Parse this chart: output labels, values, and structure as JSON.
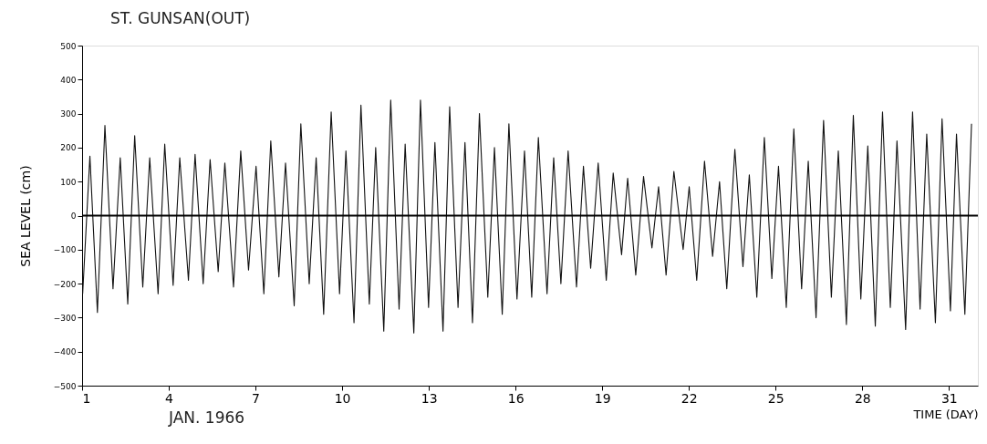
{
  "chart_data": {
    "type": "line",
    "title": "ST. GUNSAN(OUT)",
    "xlabel": "TIME (DAY)",
    "ylabel": "SEA LEVEL (cm)",
    "annotations": [
      "JAN. 1966"
    ],
    "xlim": [
      1,
      32
    ],
    "xticks": [
      1,
      4,
      7,
      10,
      13,
      16,
      19,
      22,
      25,
      28,
      31
    ],
    "ylim": [
      -500,
      500
    ],
    "yticks": [
      -500,
      -400,
      -300,
      -200,
      -100,
      0,
      100,
      200,
      300,
      400,
      500
    ],
    "grid": false,
    "line_style": "solid",
    "marker": "none",
    "ref_lines": [
      {
        "axis": "y",
        "value": 0,
        "color": "#000000"
      }
    ],
    "series": [
      {
        "color": "#111111",
        "x": [
          1.02,
          1.27,
          1.53,
          1.79,
          2.07,
          2.32,
          2.58,
          2.82,
          3.1,
          3.34,
          3.63,
          3.86,
          4.15,
          4.38,
          4.68,
          4.91,
          5.19,
          5.43,
          5.71,
          5.94,
          6.24,
          6.49,
          6.76,
          7.02,
          7.29,
          7.53,
          7.81,
          8.04,
          8.34,
          8.57,
          8.86,
          9.1,
          9.36,
          9.62,
          9.91,
          10.13,
          10.41,
          10.65,
          10.94,
          11.16,
          11.44,
          11.68,
          11.97,
          12.18,
          12.48,
          12.71,
          12.99,
          13.21,
          13.49,
          13.72,
          14.01,
          14.25,
          14.51,
          14.75,
          15.04,
          15.27,
          15.54,
          15.77,
          16.05,
          16.31,
          16.56,
          16.79,
          17.09,
          17.32,
          17.57,
          17.82,
          18.11,
          18.35,
          18.6,
          18.86,
          19.14,
          19.38,
          19.67,
          19.88,
          20.16,
          20.43,
          20.72,
          20.95,
          21.21,
          21.48,
          21.8,
          22.01,
          22.27,
          22.54,
          22.82,
          23.06,
          23.31,
          23.59,
          23.87,
          24.09,
          24.35,
          24.61,
          24.87,
          25.1,
          25.37,
          25.63,
          25.9,
          26.13,
          26.4,
          26.66,
          26.93,
          27.17,
          27.45,
          27.69,
          27.95,
          28.19,
          28.45,
          28.7,
          28.97,
          29.2,
          29.5,
          29.74,
          30.0,
          30.23,
          30.53,
          30.76,
          31.05,
          31.26,
          31.55,
          31.78
        ],
        "values": [
          -230,
          175,
          -285,
          265,
          -215,
          170,
          -260,
          235,
          -210,
          170,
          -230,
          210,
          -205,
          170,
          -190,
          180,
          -200,
          165,
          -165,
          155,
          -210,
          190,
          -160,
          145,
          -230,
          220,
          -180,
          155,
          -265,
          270,
          -200,
          170,
          -290,
          305,
          -230,
          190,
          -315,
          325,
          -260,
          200,
          -340,
          340,
          -275,
          210,
          -345,
          340,
          -270,
          215,
          -340,
          320,
          -270,
          215,
          -315,
          300,
          -240,
          200,
          -290,
          270,
          -245,
          190,
          -240,
          230,
          -230,
          170,
          -200,
          190,
          -210,
          145,
          -155,
          155,
          -190,
          125,
          -115,
          110,
          -175,
          115,
          -95,
          85,
          -175,
          130,
          -100,
          85,
          -190,
          160,
          -120,
          100,
          -215,
          195,
          -150,
          120,
          -240,
          230,
          -185,
          145,
          -270,
          255,
          -215,
          160,
          -300,
          280,
          -240,
          190,
          -320,
          295,
          -245,
          205,
          -325,
          305,
          -270,
          220,
          -335,
          305,
          -275,
          240,
          -315,
          285,
          -280,
          240,
          -290,
          270
        ]
      }
    ]
  }
}
